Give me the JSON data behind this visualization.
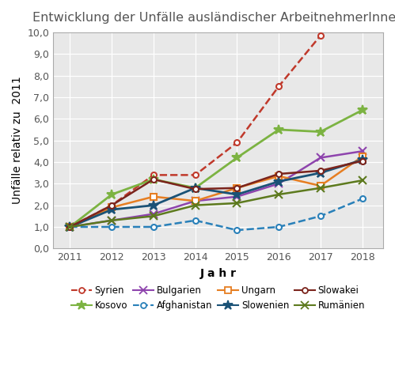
{
  "title": "Entwicklung der Unfälle ausländischer ArbeitnehmerInnen",
  "xlabel": "J a h r",
  "ylabel": "Unfälle relativ zu  2011",
  "years": [
    2011,
    2012,
    2013,
    2014,
    2015,
    2016,
    2017,
    2018
  ],
  "ylim": [
    0.0,
    10.0
  ],
  "yticks": [
    0.0,
    1.0,
    2.0,
    3.0,
    4.0,
    5.0,
    6.0,
    7.0,
    8.0,
    9.0,
    10.0
  ],
  "series": [
    {
      "label": "Syrien",
      "color": "#c0392b",
      "linestyle": "dashed",
      "marker": "o",
      "marker_facecolor": "white",
      "linewidth": 1.8,
      "values": [
        1.0,
        2.0,
        3.4,
        3.4,
        4.9,
        7.5,
        9.85,
        null
      ]
    },
    {
      "label": "Kosovo",
      "color": "#7cb342",
      "linestyle": "solid",
      "marker": "*",
      "marker_facecolor": "#7cb342",
      "linewidth": 2.0,
      "markersize": 9,
      "values": [
        1.0,
        2.5,
        3.2,
        2.8,
        4.2,
        5.5,
        5.4,
        6.4
      ]
    },
    {
      "label": "Bulgarien",
      "color": "#8e44ad",
      "linestyle": "solid",
      "marker": "x",
      "marker_facecolor": "#8e44ad",
      "linewidth": 1.8,
      "markersize": 7,
      "values": [
        1.0,
        1.3,
        1.6,
        2.2,
        2.4,
        3.0,
        4.2,
        4.5
      ]
    },
    {
      "label": "Afghanistan",
      "color": "#2980b9",
      "linestyle": "dashed",
      "marker": "o",
      "marker_facecolor": "white",
      "linewidth": 1.8,
      "markersize": 5,
      "values": [
        1.0,
        1.0,
        1.0,
        1.3,
        0.85,
        1.0,
        1.5,
        2.3
      ]
    },
    {
      "label": "Ungarn",
      "color": "#e67e22",
      "linestyle": "solid",
      "marker": "s",
      "marker_facecolor": "white",
      "linewidth": 1.8,
      "markersize": 6,
      "values": [
        1.0,
        1.9,
        2.4,
        2.2,
        2.8,
        3.35,
        2.9,
        4.25
      ]
    },
    {
      "label": "Slowenien",
      "color": "#1a5276",
      "linestyle": "solid",
      "marker": "*",
      "marker_facecolor": "#1a5276",
      "linewidth": 2.0,
      "markersize": 9,
      "values": [
        1.0,
        1.8,
        2.0,
        2.8,
        2.5,
        3.1,
        3.5,
        4.1
      ]
    },
    {
      "label": "Slowakei",
      "color": "#7b241c",
      "linestyle": "solid",
      "marker": "o",
      "marker_facecolor": "white",
      "linewidth": 1.8,
      "markersize": 5,
      "values": [
        1.0,
        2.0,
        3.2,
        2.75,
        2.8,
        3.45,
        3.6,
        4.05
      ]
    },
    {
      "label": "Rumänien",
      "color": "#5d7a1e",
      "linestyle": "solid",
      "marker": "x",
      "marker_facecolor": "#5d7a1e",
      "linewidth": 1.8,
      "markersize": 7,
      "values": [
        1.0,
        1.3,
        1.5,
        2.0,
        2.1,
        2.5,
        2.8,
        3.15
      ]
    }
  ],
  "background_color": "#ffffff",
  "plot_bg_color": "#e8e8e8",
  "title_fontsize": 11.5,
  "axis_label_fontsize": 10,
  "tick_fontsize": 9,
  "legend_fontsize": 8.5,
  "legend_order": [
    "Syrien",
    "Kosovo",
    "Bulgarien",
    "Afghanistan",
    "Ungarn",
    "Slowenien",
    "Slowakei",
    "Rumänien"
  ]
}
